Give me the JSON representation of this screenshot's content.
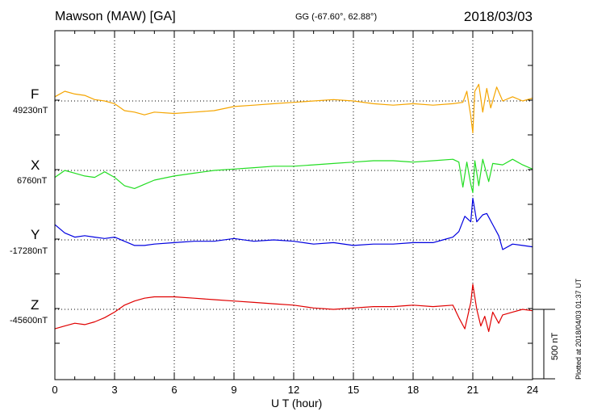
{
  "header": {
    "station": "Mawson (MAW)  [GA]",
    "coords": "GG (-67.60°,  62.88°)",
    "date": "2018/03/03"
  },
  "footer": {
    "plotted_at": "Plotted at 2018/04/03 01:37 UT",
    "scale_label": "500 nT"
  },
  "chart_data": {
    "type": "line",
    "xlabel": "U T (hour)",
    "xlim": [
      0,
      24
    ],
    "xticks": [
      0,
      3,
      6,
      9,
      12,
      15,
      18,
      21,
      24
    ],
    "scale_bar_nT": 500,
    "grid": true,
    "series": [
      {
        "name": "F",
        "baseline_label": "49230nT",
        "baseline_nT": 49230,
        "color": "#f5a500",
        "x": [
          0,
          0.5,
          1,
          1.5,
          2,
          2.5,
          3,
          3.5,
          4,
          4.5,
          5,
          6,
          7,
          8,
          9,
          10,
          11,
          12,
          13,
          14,
          15,
          16,
          17,
          18,
          19,
          20,
          20.5,
          20.7,
          20.9,
          21,
          21.1,
          21.3,
          21.5,
          21.7,
          21.9,
          22.2,
          22.5,
          23,
          23.5,
          24
        ],
        "y": [
          49260,
          49300,
          49280,
          49270,
          49240,
          49230,
          49210,
          49160,
          49150,
          49130,
          49150,
          49140,
          49150,
          49160,
          49190,
          49200,
          49210,
          49220,
          49230,
          49240,
          49230,
          49210,
          49200,
          49210,
          49200,
          49210,
          49220,
          49300,
          49120,
          49000,
          49300,
          49350,
          49150,
          49320,
          49180,
          49330,
          49230,
          49260,
          49230,
          49250
        ]
      },
      {
        "name": "X",
        "baseline_label": "6760nT",
        "baseline_nT": 6760,
        "color": "#22dd22",
        "x": [
          0,
          0.5,
          1,
          1.5,
          2,
          2.5,
          3,
          3.5,
          4,
          4.5,
          5,
          6,
          7,
          8,
          9,
          10,
          11,
          12,
          13,
          14,
          15,
          16,
          17,
          18,
          19,
          20,
          20.3,
          20.5,
          20.7,
          20.9,
          21,
          21.1,
          21.3,
          21.5,
          21.8,
          22,
          22.5,
          23,
          23.5,
          24
        ],
        "y": [
          6710,
          6760,
          6740,
          6720,
          6710,
          6750,
          6710,
          6650,
          6630,
          6660,
          6690,
          6720,
          6740,
          6760,
          6770,
          6780,
          6790,
          6790,
          6800,
          6810,
          6820,
          6830,
          6830,
          6820,
          6830,
          6840,
          6820,
          6640,
          6820,
          6660,
          6600,
          6830,
          6650,
          6840,
          6680,
          6810,
          6800,
          6840,
          6800,
          6770
        ]
      },
      {
        "name": "Y",
        "baseline_label": "-17280nT",
        "baseline_nT": -17280,
        "color": "#0000e0",
        "x": [
          0,
          0.5,
          1,
          1.5,
          2,
          2.5,
          3,
          3.5,
          4,
          4.5,
          5,
          6,
          7,
          8,
          9,
          10,
          11,
          12,
          13,
          14,
          15,
          16,
          17,
          18,
          19,
          19.5,
          20,
          20.3,
          20.6,
          20.9,
          21,
          21.2,
          21.5,
          21.7,
          22,
          22.3,
          22.5,
          23,
          23.5,
          24
        ],
        "y": [
          -17170,
          -17230,
          -17260,
          -17250,
          -17260,
          -17270,
          -17260,
          -17290,
          -17320,
          -17320,
          -17310,
          -17300,
          -17290,
          -17290,
          -17270,
          -17290,
          -17280,
          -17290,
          -17310,
          -17300,
          -17320,
          -17310,
          -17310,
          -17300,
          -17300,
          -17280,
          -17260,
          -17220,
          -17110,
          -17150,
          -16980,
          -17150,
          -17100,
          -17090,
          -17170,
          -17250,
          -17350,
          -17310,
          -17320,
          -17330
        ]
      },
      {
        "name": "Z",
        "baseline_label": "-45600nT",
        "baseline_nT": -45600,
        "color": "#e00000",
        "x": [
          0,
          0.5,
          1,
          1.5,
          2,
          2.5,
          3,
          3.5,
          4,
          4.5,
          5,
          6,
          7,
          8,
          9,
          10,
          11,
          12,
          13,
          14,
          15,
          16,
          17,
          18,
          19,
          20,
          20.3,
          20.6,
          20.9,
          21,
          21.2,
          21.4,
          21.6,
          21.8,
          22,
          22.3,
          22.5,
          23,
          23.5,
          24
        ],
        "y": [
          -45740,
          -45720,
          -45700,
          -45710,
          -45690,
          -45660,
          -45620,
          -45570,
          -45540,
          -45520,
          -45510,
          -45510,
          -45520,
          -45530,
          -45540,
          -45550,
          -45560,
          -45570,
          -45590,
          -45600,
          -45590,
          -45580,
          -45580,
          -45570,
          -45580,
          -45570,
          -45660,
          -45740,
          -45550,
          -45420,
          -45600,
          -45720,
          -45650,
          -45760,
          -45620,
          -45700,
          -45640,
          -45620,
          -45600,
          -45610
        ]
      }
    ]
  }
}
